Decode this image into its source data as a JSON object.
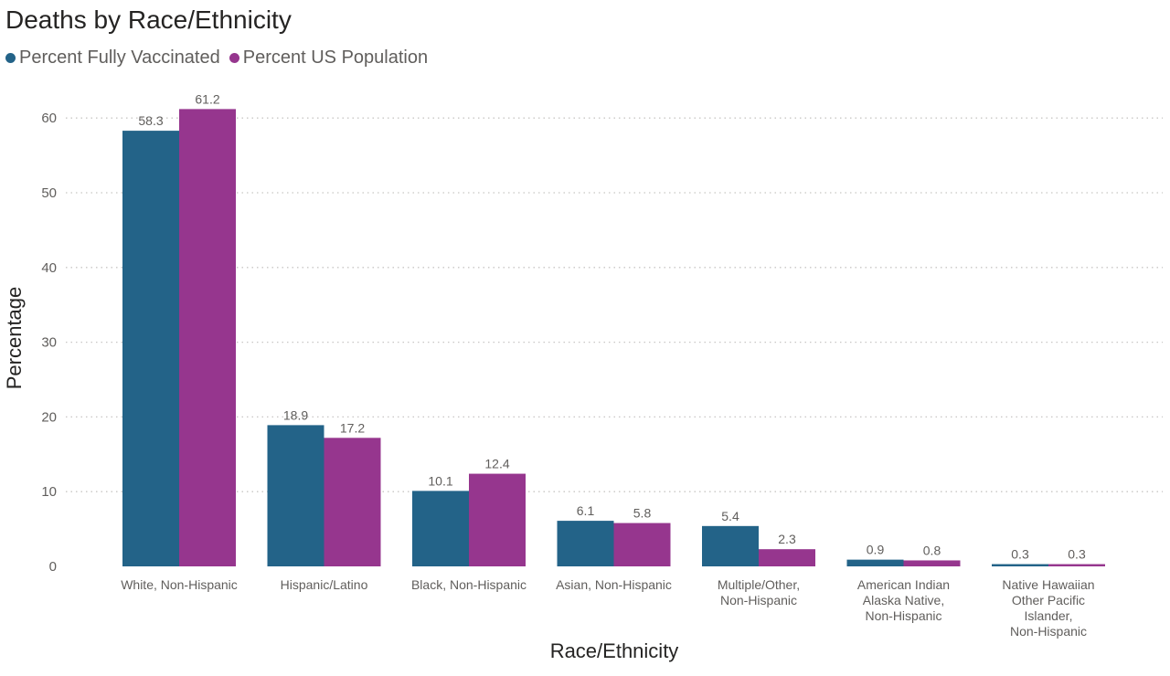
{
  "chart_data": {
    "type": "bar",
    "title": "Deaths by Race/Ethnicity",
    "xlabel": "Race/Ethnicity",
    "ylabel": "Percentage",
    "ylim": [
      0,
      65
    ],
    "yticks": [
      0,
      10,
      20,
      30,
      40,
      50,
      60
    ],
    "grid": true,
    "legend_position": "top-left",
    "categories": [
      [
        "White, Non-Hispanic"
      ],
      [
        "Hispanic/Latino"
      ],
      [
        "Black, Non-Hispanic"
      ],
      [
        "Asian, Non-Hispanic"
      ],
      [
        "Multiple/Other,",
        "Non-Hispanic"
      ],
      [
        "American Indian",
        "Alaska Native,",
        "Non-Hispanic"
      ],
      [
        "Native Hawaiian",
        "Other Pacific",
        "Islander,",
        "Non-Hispanic"
      ]
    ],
    "series": [
      {
        "name": "Percent Fully Vaccinated",
        "color": "#236388",
        "values": [
          58.3,
          18.9,
          10.1,
          6.1,
          5.4,
          0.9,
          0.3
        ],
        "labels": [
          "58.3",
          "18.9",
          "10.1",
          "6.1",
          "5.4",
          "0.9",
          "0.3"
        ]
      },
      {
        "name": "Percent US Population",
        "color": "#96368e",
        "values": [
          61.2,
          17.2,
          12.4,
          5.8,
          2.3,
          0.8,
          0.3
        ],
        "labels": [
          "61.2",
          "17.2",
          "12.4",
          "5.8",
          "2.3",
          "0.8",
          "0.3"
        ]
      }
    ]
  }
}
